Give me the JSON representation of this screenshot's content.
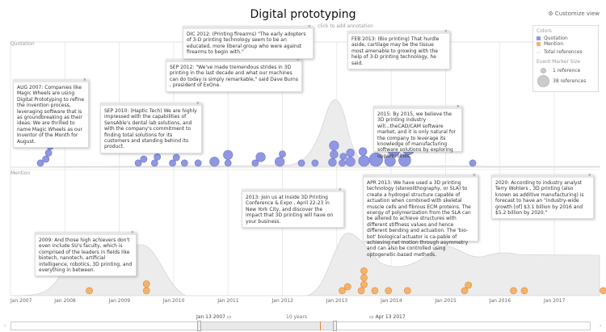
{
  "header": {
    "title": "Digital prototyping",
    "customize_label": "Customize view",
    "annotation_hint": "click to add annotation"
  },
  "bands": {
    "quotation": "Quotation",
    "mention": "Mention"
  },
  "colors": {
    "quotation": "#8f97e3",
    "mention": "#f5b26b",
    "total": "#ececec"
  },
  "legend": {
    "colors_title": "Colors",
    "items": [
      "Quotation",
      "Mention",
      "Total references"
    ],
    "size_title": "Event Marker Size",
    "size_min": "1 reference",
    "size_max": "38 references"
  },
  "axis": {
    "ticks": [
      "Jan 2007",
      "Jan 2008",
      "Jan 2009",
      "Jan 2010",
      "Jan 2011",
      "Jan 2012",
      "Jan 2013",
      "Jan 2014",
      "Jan 2015",
      "Jan 2016",
      "Jan 2017"
    ]
  },
  "annotations": [
    "AUG 2007: Companies like Magic Wheels are using Digital Prototyping to refine the invention process, leveraging software that is as groundbreaking as their ideas. We are thrilled to name Magic Wheels as our Inventor of the Month for August.",
    "SEP 2010: (Haptic Tech) We are highly impressed with the capabilities of SensAble's dental lab solutions, and with the company's commitment to finding total solutions for its customers and standing behind its product.",
    "SEP 2012: \"We've made tremendous strides in 3D printing in the last decade and what our machines can do today is simply remarkable,\" said Dave Burns , president of ExOne.",
    "DIC 2012: (Printing firearms) \"The early adopters of 3-D printing technology seem to be an educated, more liberal group who were against firearms to begin with.\"",
    "FEB 2013: (Bio printing) That hurdle aside, cartilage may be the tissue most amenable to growing with the help of 3-D printing technology, he said.",
    "2015: By 2015, we believe the 3D printing industry will...theCAD/CAM software market, and it is only natural for the company to leverage its knowledge of manufacturing software solutions by exploring opportunities.",
    "2009: And those high achievers don't even include SU's faculty, which is comprised of the leaders in fields like biotech, nanotech, artificial intelligence, robotics, 3D printing, and everything in between.",
    "2013: Join us at Inside 3D Printing Conference & Expo , April 22-23 in New York City, and discover the impact that 3D printing will have on your business.",
    "APR 2013: We have used a 3D printing technology (stereolithography, or SLA) to create a hydrogel structure capable of actuation when combined with skeletal muscle cells and fibrous ECM proteins. The energy of polymerization from the SLA can be altered to achieve structures with different stiffness values and hence different bending and actuation. The 'bio-bot' biological actuator is ca-pable of achieving net motion through asymmetry and can also be controlled using optogenetic-based methods.",
    "2020: According to industry analyst Terry Wohlers , 3D printing (also known as additive manufacturing) is forecast to have an \"industry-wide growth [of] $3.1 billion by 2016 and $5.2 billion by 2020.\""
  ],
  "navigator": {
    "start": "Jan 13 2007",
    "end": "Apr 13 2017",
    "span": "10 years"
  },
  "events": {
    "quotation": [
      {
        "date": 2007.55,
        "refs": 2
      },
      {
        "date": 2007.65,
        "refs": 2
      },
      {
        "date": 2007.7,
        "refs": 2
      },
      {
        "date": 2007.73,
        "refs": 2
      },
      {
        "date": 2009.35,
        "refs": 2
      },
      {
        "date": 2009.45,
        "refs": 2
      },
      {
        "date": 2009.65,
        "refs": 2
      },
      {
        "date": 2009.7,
        "refs": 2
      },
      {
        "date": 2009.98,
        "refs": 2
      },
      {
        "date": 2010.05,
        "refs": 2
      },
      {
        "date": 2010.2,
        "refs": 2
      },
      {
        "date": 2010.45,
        "refs": 2
      },
      {
        "date": 2010.75,
        "refs": 4
      },
      {
        "date": 2011.0,
        "refs": 2
      },
      {
        "date": 2011.0,
        "refs": 4
      },
      {
        "date": 2011.5,
        "refs": 2
      },
      {
        "date": 2011.6,
        "refs": 4
      },
      {
        "date": 2011.95,
        "refs": 4
      },
      {
        "date": 2012.0,
        "refs": 2
      },
      {
        "date": 2012.35,
        "refs": 2
      },
      {
        "date": 2012.6,
        "refs": 2
      },
      {
        "date": 2012.92,
        "refs": 3
      },
      {
        "date": 2012.95,
        "refs": 3
      },
      {
        "date": 2012.95,
        "refs": 4
      },
      {
        "date": 2013.1,
        "refs": 2
      },
      {
        "date": 2013.12,
        "refs": 2
      },
      {
        "date": 2013.25,
        "refs": 4
      },
      {
        "date": 2013.25,
        "refs": 3
      },
      {
        "date": 2013.5,
        "refs": 5
      },
      {
        "date": 2013.48,
        "refs": 3
      },
      {
        "date": 2013.72,
        "refs": 7
      },
      {
        "date": 2013.98,
        "refs": 5
      },
      {
        "date": 2014.05,
        "refs": 6
      },
      {
        "date": 2014.15,
        "refs": 6
      },
      {
        "date": 2014.15,
        "refs": 6
      },
      {
        "date": 2014.25,
        "refs": 6
      },
      {
        "date": 2014.32,
        "refs": 6
      },
      {
        "date": 2015.5,
        "refs": 2
      }
    ],
    "mention": [
      {
        "date": 2008.45,
        "refs": 2
      },
      {
        "date": 2009.5,
        "refs": 2
      },
      {
        "date": 2009.5,
        "refs": 2
      },
      {
        "date": 2013.1,
        "refs": 2
      },
      {
        "date": 2013.2,
        "refs": 2
      },
      {
        "date": 2013.45,
        "refs": 2
      },
      {
        "date": 2013.5,
        "refs": 2
      },
      {
        "date": 2013.5,
        "refs": 2
      },
      {
        "date": 2013.5,
        "refs": 2
      },
      {
        "date": 2013.7,
        "refs": 2
      },
      {
        "date": 2013.95,
        "refs": 2
      },
      {
        "date": 2014.3,
        "refs": 2
      },
      {
        "date": 2015.35,
        "refs": 2
      },
      {
        "date": 2015.42,
        "refs": 2
      },
      {
        "date": 2016.25,
        "refs": 2
      },
      {
        "date": 2016.45,
        "refs": 2
      },
      {
        "date": 2017.9,
        "refs": 2
      }
    ]
  }
}
